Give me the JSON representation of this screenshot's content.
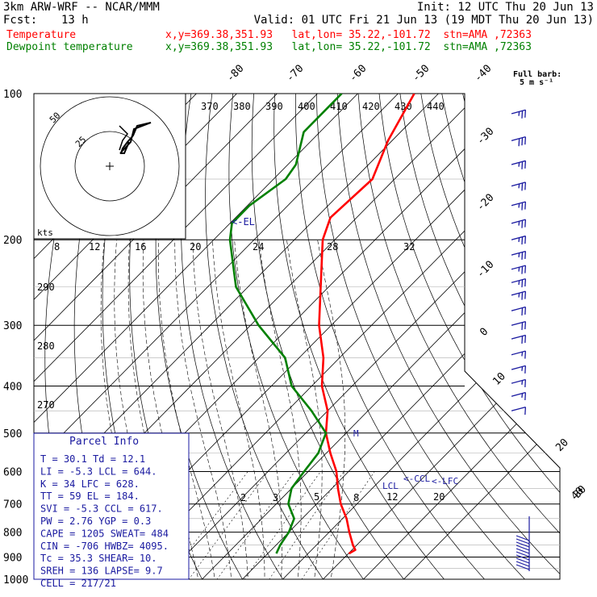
{
  "header": {
    "model": "3km ARW-WRF -- NCAR/MMM",
    "init": "Init: 12 UTC Thu 20 Jun 13",
    "fcst_label": "Fcst:",
    "fcst_value": "13 h",
    "valid": "Valid: 01 UTC Fri 21 Jun 13 (19 MDT Thu 20 Jun 13)",
    "temp_label": "Temperature",
    "temp_loc": "x,y=369.38,351.93   lat,lon= 35.22,-101.72  stn=AMA ,72363",
    "dew_label": "Dewpoint temperature",
    "dew_loc": "x,y=369.38,351.93   lat,lon= 35.22,-101.72  stn=AMA ,72363",
    "temp_color": "#ff0000",
    "dew_color": "#008000"
  },
  "full_barb": {
    "line1": "Full barb:",
    "line2": "5 m s⁻¹"
  },
  "hodograph": {
    "unit": "kts",
    "ring_labels": [
      "50",
      "25"
    ]
  },
  "parcel_info": {
    "title": "Parcel Info",
    "rows": [
      "T   =   30.1  Td =  12.1",
      "LI  =   -5.3  LCL =  644.",
      "K   =     34  LFC =  628.",
      "TT  =     59  EL  =  184.",
      "SVI =   -5.3  CCL =  617.",
      "PW  =   2.76  YGP =   0.3",
      "CAPE =  1205  SWEAT=  484",
      "CIN  =  -706  HWBZ= 4095.",
      "Tc  =   35.3  SHEAR=  10.",
      "SREH =   136  LAPSE=  9.7",
      "CELL = 217/21"
    ]
  },
  "markers": {
    "el": "<-EL",
    "lcl": "LCL",
    "ccl": "<-CCL",
    "lfc": "<-LFC",
    "m": "M"
  },
  "chart_data": {
    "type": "line",
    "title": "",
    "xlabel": "",
    "ylabel": "",
    "pressure_ticks": [
      100,
      200,
      300,
      400,
      500,
      600,
      700,
      800,
      900,
      1000
    ],
    "isotherm_labels": [
      "-80",
      "-70",
      "-60",
      "-50",
      "-40",
      "-30",
      "-20",
      "-10",
      "0",
      "10",
      "20",
      "30",
      "40"
    ],
    "theta_labels": [
      "370",
      "380",
      "390",
      "400",
      "410",
      "420",
      "430",
      "440"
    ],
    "theta_side_labels": [
      "290",
      "280",
      "270"
    ],
    "mixing_ratio_labels_top": [
      "8",
      "12",
      "16",
      "20",
      "24",
      "28",
      "32"
    ],
    "mixing_ratio_labels_low": [
      "2",
      "3",
      "5",
      "8",
      "12",
      "20"
    ],
    "series": [
      {
        "name": "Temperature",
        "color": "#ff0000",
        "points": [
          [
            100,
            -66.0
          ],
          [
            125,
            -61.0
          ],
          [
            150,
            -55.5
          ],
          [
            180,
            -56.5
          ],
          [
            200,
            -53.0
          ],
          [
            250,
            -42.0
          ],
          [
            300,
            -33.0
          ],
          [
            350,
            -24.0
          ],
          [
            400,
            -17.5
          ],
          [
            450,
            -10.0
          ],
          [
            500,
            -5.0
          ],
          [
            550,
            1.0
          ],
          [
            600,
            7.0
          ],
          [
            650,
            11.5
          ],
          [
            700,
            16.0
          ],
          [
            750,
            21.0
          ],
          [
            800,
            25.0
          ],
          [
            850,
            29.0
          ],
          [
            870,
            30.8
          ],
          [
            885,
            30.1
          ]
        ]
      },
      {
        "name": "Dewpoint temperature",
        "color": "#008000",
        "points": [
          [
            100,
            -84.0
          ],
          [
            120,
            -84.0
          ],
          [
            140,
            -78.0
          ],
          [
            150,
            -77.0
          ],
          [
            170,
            -79.5
          ],
          [
            185,
            -79.5
          ],
          [
            200,
            -76.0
          ],
          [
            250,
            -63.0
          ],
          [
            300,
            -48.0
          ],
          [
            350,
            -33.5
          ],
          [
            400,
            -25.0
          ],
          [
            450,
            -14.0
          ],
          [
            500,
            -5.0
          ],
          [
            550,
            -2.0
          ],
          [
            600,
            -1.0
          ],
          [
            650,
            0.0
          ],
          [
            700,
            3.0
          ],
          [
            750,
            8.0
          ],
          [
            800,
            10.0
          ],
          [
            850,
            11.0
          ],
          [
            885,
            12.1
          ]
        ]
      }
    ],
    "wind_profile": [
      {
        "p": 110,
        "dir": 255,
        "spd": 25
      },
      {
        "p": 125,
        "dir": 255,
        "spd": 30
      },
      {
        "p": 140,
        "dir": 255,
        "spd": 25
      },
      {
        "p": 155,
        "dir": 255,
        "spd": 25
      },
      {
        "p": 170,
        "dir": 255,
        "spd": 25
      },
      {
        "p": 185,
        "dir": 255,
        "spd": 25
      },
      {
        "p": 200,
        "dir": 255,
        "spd": 25
      },
      {
        "p": 215,
        "dir": 255,
        "spd": 25
      },
      {
        "p": 230,
        "dir": 255,
        "spd": 25
      },
      {
        "p": 245,
        "dir": 255,
        "spd": 25
      },
      {
        "p": 260,
        "dir": 255,
        "spd": 25
      },
      {
        "p": 280,
        "dir": 255,
        "spd": 20
      },
      {
        "p": 300,
        "dir": 255,
        "spd": 20
      },
      {
        "p": 320,
        "dir": 255,
        "spd": 20
      },
      {
        "p": 345,
        "dir": 255,
        "spd": 15
      },
      {
        "p": 370,
        "dir": 255,
        "spd": 15
      },
      {
        "p": 395,
        "dir": 255,
        "spd": 15
      },
      {
        "p": 420,
        "dir": 255,
        "spd": 15
      },
      {
        "p": 450,
        "dir": 255,
        "spd": 10
      }
    ]
  }
}
